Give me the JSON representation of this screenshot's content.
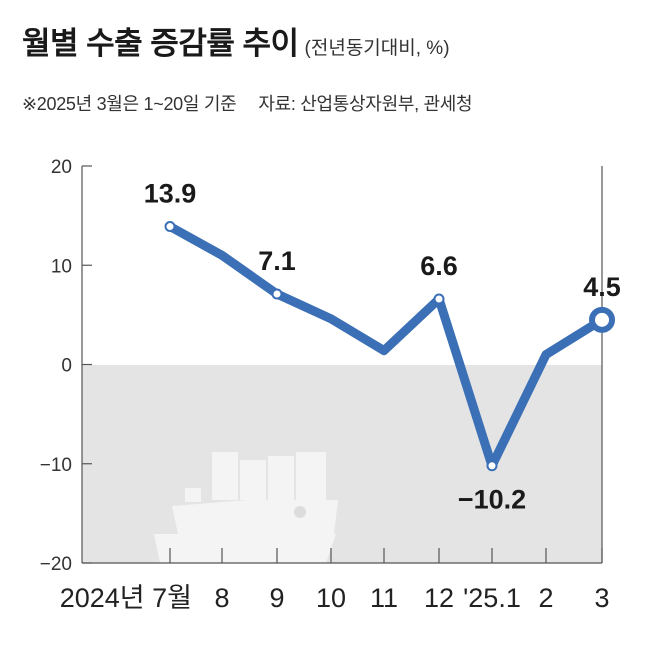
{
  "header": {
    "title": "월별 수출 증감률 추이",
    "unit": "(전년동기대비,  %)",
    "note": "※2025년 3월은 1~20일 기준",
    "source": "자료: 산업통상자원부, 관세청"
  },
  "chart_data": {
    "type": "line",
    "title": "월별 수출 증감률 추이",
    "ylabel": "(전년동기대비, %)",
    "ylim": [
      -20,
      20
    ],
    "yticks": [
      20,
      10,
      0,
      -10,
      -20
    ],
    "ytick_labels": [
      "20",
      "10",
      "0",
      "−10",
      "−20"
    ],
    "x": [
      "2024년 7월",
      "8",
      "9",
      "10",
      "11",
      "12",
      "'25.1",
      "2",
      "3"
    ],
    "series": [
      {
        "values": [
          13.9,
          11.0,
          7.1,
          4.6,
          1.4,
          6.6,
          -10.2,
          1.0,
          4.5
        ],
        "data_labels": [
          "13.9",
          "",
          "7.1",
          "",
          "",
          "6.6",
          "−10.2",
          "",
          "4.5"
        ]
      }
    ],
    "negative_region_shaded": true,
    "background_illustration": "cargo-ship",
    "line_color": "#3b6fb6",
    "shade_color": "#e4e4e4",
    "grid": false
  }
}
